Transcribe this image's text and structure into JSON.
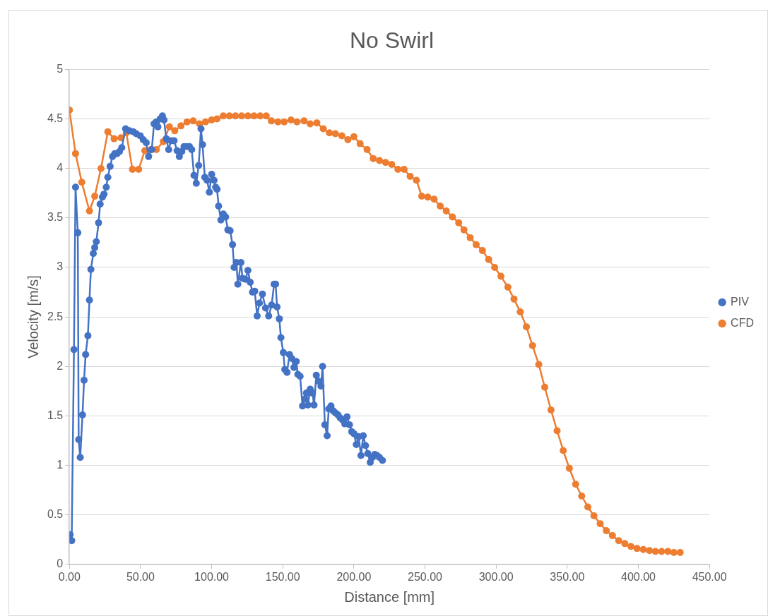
{
  "chart_data": {
    "type": "line",
    "title": "No Swirl",
    "xlabel": "Distance [mm]",
    "ylabel": "Velocity [m/s]",
    "xlim": [
      0,
      450
    ],
    "xticks": [
      {
        "value": 0,
        "label": "0.00"
      },
      {
        "value": 50,
        "label": "50.00"
      },
      {
        "value": 100,
        "label": "100.00"
      },
      {
        "value": 150,
        "label": "150.00"
      },
      {
        "value": 200,
        "label": "200.00"
      },
      {
        "value": 250,
        "label": "250.00"
      },
      {
        "value": 300,
        "label": "300.00"
      },
      {
        "value": 350,
        "label": "350.00"
      },
      {
        "value": 400,
        "label": "400.00"
      },
      {
        "value": 450,
        "label": "450.00"
      }
    ],
    "ylim": [
      0,
      5
    ],
    "yticks": [
      0,
      0.5,
      1,
      1.5,
      2,
      2.5,
      3,
      3.5,
      4,
      4.5,
      5
    ],
    "grid": "y",
    "legend": "right",
    "marker": "circle",
    "line_style": "solid",
    "series": [
      {
        "name": "PIV",
        "color": "#4472c4",
        "x": [
          0.5,
          1.6,
          3.2,
          4.3,
          5.9,
          6.5,
          7.6,
          9.2,
          10.3,
          11.4,
          13,
          14.1,
          15.1,
          16.8,
          17.8,
          18.9,
          20.5,
          21.6,
          23.2,
          24.3,
          25.9,
          27,
          28.6,
          30.3,
          31.9,
          33.5,
          35.2,
          36.8,
          39.5,
          42.2,
          44.9,
          47,
          49.8,
          51.9,
          54,
          55.7,
          57.9,
          59.5,
          61.1,
          62.2,
          63.8,
          65.4,
          66.5,
          68.1,
          69.8,
          71.4,
          73.6,
          75.7,
          77.3,
          79,
          80.6,
          82.7,
          84.4,
          86,
          87.6,
          89.2,
          90.9,
          92.5,
          93.6,
          95.2,
          96.8,
          98.4,
          100,
          101.7,
          102.8,
          103.8,
          104.9,
          106.5,
          108.2,
          109.8,
          111.4,
          113,
          114.7,
          115.8,
          117.4,
          118.4,
          120.6,
          121.7,
          123.8,
          125.5,
          127.1,
          128.7,
          130.3,
          132,
          133.6,
          135.7,
          137.9,
          140.1,
          142.2,
          143.9,
          145,
          146,
          147.6,
          148.7,
          150.4,
          151.4,
          153,
          154.7,
          156.3,
          157.9,
          159.5,
          160.6,
          162.2,
          163.9,
          165.5,
          166.6,
          167.7,
          169.3,
          170.9,
          172,
          173.6,
          175.2,
          176.9,
          178,
          179.6,
          181.2,
          182.3,
          183.9,
          185.5,
          187.1,
          188.8,
          190.4,
          192,
          193.6,
          195.2,
          196.9,
          198.5,
          200.1,
          201.7,
          203.4,
          205,
          206.6,
          208.2,
          209.8,
          211.5,
          213.1,
          214.7,
          216.3,
          218,
          220.1
        ],
        "values": [
          0.3,
          0.24,
          2.17,
          3.81,
          3.35,
          1.26,
          1.08,
          1.51,
          1.86,
          2.12,
          2.31,
          2.67,
          2.98,
          3.14,
          3.2,
          3.26,
          3.45,
          3.64,
          3.71,
          3.74,
          3.81,
          3.91,
          4.02,
          4.12,
          4.15,
          4.15,
          4.17,
          4.21,
          4.4,
          4.38,
          4.37,
          4.35,
          4.33,
          4.29,
          4.26,
          4.12,
          4.19,
          4.45,
          4.47,
          4.42,
          4.5,
          4.53,
          4.49,
          4.3,
          4.19,
          4.28,
          4.28,
          4.18,
          4.12,
          4.17,
          4.22,
          4.22,
          4.22,
          4.19,
          3.93,
          3.85,
          4.03,
          4.4,
          4.24,
          3.91,
          3.88,
          3.76,
          3.94,
          3.88,
          3.81,
          3.79,
          3.62,
          3.48,
          3.54,
          3.51,
          3.38,
          3.37,
          3.23,
          3.0,
          3.05,
          2.83,
          3.05,
          2.89,
          2.88,
          2.97,
          2.85,
          2.75,
          2.76,
          2.51,
          2.64,
          2.73,
          2.59,
          2.51,
          2.62,
          2.83,
          2.83,
          2.6,
          2.48,
          2.29,
          2.14,
          1.97,
          1.94,
          2.12,
          2.08,
          1.99,
          2.05,
          1.92,
          1.9,
          1.6,
          1.67,
          1.73,
          1.61,
          1.77,
          1.73,
          1.61,
          1.91,
          1.85,
          1.8,
          2.0,
          1.41,
          1.3,
          1.57,
          1.6,
          1.55,
          1.53,
          1.51,
          1.48,
          1.46,
          1.42,
          1.49,
          1.41,
          1.34,
          1.32,
          1.21,
          1.29,
          1.1,
          1.3,
          1.2,
          1.12,
          1.03,
          1.08,
          1.11,
          1.1,
          1.08,
          1.05
        ]
      },
      {
        "name": "CFD",
        "color": "#ed7d31",
        "x": [
          0,
          4.3,
          8.7,
          14.1,
          17.8,
          22.2,
          27,
          31.4,
          36.2,
          40,
          44.3,
          48.7,
          53,
          57.3,
          61.1,
          66,
          70.3,
          74.1,
          78.4,
          82.7,
          87,
          91.4,
          95.7,
          100,
          103.8,
          108.2,
          112.5,
          116.8,
          121.1,
          125.5,
          129.8,
          134.1,
          138.4,
          142,
          146.6,
          151,
          155.8,
          160,
          165,
          169.3,
          174,
          178.5,
          182.8,
          187,
          191.5,
          195.8,
          200,
          204.4,
          209.3,
          213.6,
          218,
          222.3,
          226.6,
          231,
          235.3,
          239.6,
          244,
          247.7,
          252,
          256.4,
          260.7,
          265,
          269.3,
          273.7,
          277.4,
          281.8,
          286,
          290.4,
          294.8,
          299,
          303.4,
          308.3,
          312.6,
          317,
          321.3,
          325.6,
          330,
          334.2,
          338.6,
          342.9,
          347.2,
          351.5,
          355.9,
          360.2,
          364.5,
          368.8,
          373.2,
          377.5,
          381.8,
          386.2,
          390.5,
          394.8,
          399.1,
          403.5,
          407.8,
          412,
          416.4,
          420.8,
          425,
          429.4
        ],
        "values": [
          4.59,
          4.15,
          3.86,
          3.57,
          3.72,
          4.0,
          4.37,
          4.3,
          4.31,
          4.36,
          3.99,
          3.99,
          4.18,
          4.19,
          4.19,
          4.27,
          4.42,
          4.38,
          4.43,
          4.47,
          4.48,
          4.45,
          4.47,
          4.49,
          4.5,
          4.53,
          4.53,
          4.53,
          4.53,
          4.53,
          4.53,
          4.53,
          4.53,
          4.48,
          4.47,
          4.47,
          4.49,
          4.47,
          4.48,
          4.45,
          4.46,
          4.4,
          4.36,
          4.35,
          4.33,
          4.29,
          4.32,
          4.25,
          4.19,
          4.1,
          4.08,
          4.06,
          4.04,
          3.99,
          3.99,
          3.92,
          3.88,
          3.72,
          3.71,
          3.69,
          3.62,
          3.57,
          3.51,
          3.45,
          3.38,
          3.3,
          3.23,
          3.17,
          3.08,
          3.0,
          2.91,
          2.8,
          2.68,
          2.55,
          2.4,
          2.21,
          2.02,
          1.79,
          1.56,
          1.35,
          1.15,
          0.97,
          0.81,
          0.69,
          0.58,
          0.49,
          0.41,
          0.34,
          0.29,
          0.24,
          0.21,
          0.18,
          0.16,
          0.15,
          0.14,
          0.13,
          0.13,
          0.13,
          0.12,
          0.12
        ]
      }
    ]
  }
}
